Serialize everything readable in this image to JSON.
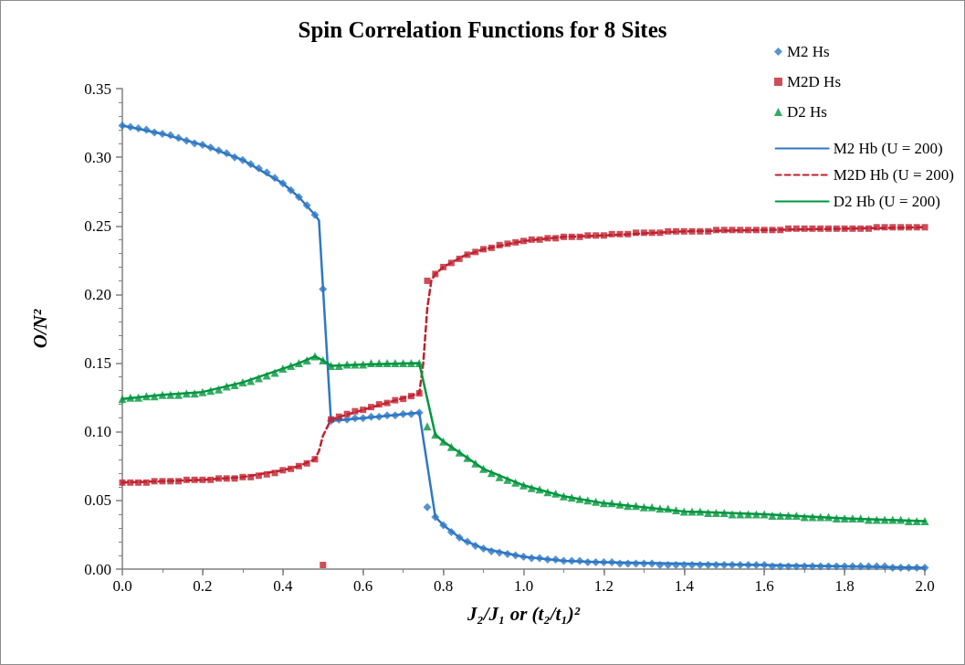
{
  "chart_data": {
    "type": "scatter",
    "title": "Spin Correlation Functions for 8 Sites",
    "xlabel": "J₂/J₁ or (t₂/t₁)²",
    "ylabel": "O/N²",
    "xlim": [
      0,
      2
    ],
    "ylim": [
      0,
      0.35
    ],
    "xticks": [
      {
        "value": 0,
        "label": "0.0"
      },
      {
        "value": 0.2,
        "label": "0.2"
      },
      {
        "value": 0.4,
        "label": "0.4"
      },
      {
        "value": 0.6,
        "label": "0.6"
      },
      {
        "value": 0.8,
        "label": "0.8"
      },
      {
        "value": 1,
        "label": "1.0"
      },
      {
        "value": 1.2,
        "label": "1.2"
      },
      {
        "value": 1.4,
        "label": "1.4"
      },
      {
        "value": 1.6,
        "label": "1.6"
      },
      {
        "value": 1.8,
        "label": "1.8"
      },
      {
        "value": 2,
        "label": "2.0"
      }
    ],
    "yticks": [
      {
        "value": 0,
        "label": "0.00"
      },
      {
        "value": 0.05,
        "label": "0.05"
      },
      {
        "value": 0.1,
        "label": "0.10"
      },
      {
        "value": 0.15,
        "label": "0.15"
      },
      {
        "value": 0.2,
        "label": "0.20"
      },
      {
        "value": 0.25,
        "label": "0.25"
      },
      {
        "value": 0.3,
        "label": "0.30"
      },
      {
        "value": 0.35,
        "label": "0.35"
      }
    ],
    "grid": false,
    "legend": "top right",
    "x": [
      0,
      0.02,
      0.04,
      0.06,
      0.08,
      0.1,
      0.12,
      0.14,
      0.16,
      0.18,
      0.2,
      0.22,
      0.24,
      0.26,
      0.28,
      0.3,
      0.32,
      0.34,
      0.36,
      0.38,
      0.4,
      0.42,
      0.44,
      0.46,
      0.48,
      0.5,
      0.52,
      0.54,
      0.56,
      0.58,
      0.6,
      0.62,
      0.64,
      0.66,
      0.68,
      0.7,
      0.72,
      0.74,
      0.76,
      0.78,
      0.8,
      0.82,
      0.84,
      0.86,
      0.88,
      0.9,
      0.92,
      0.94,
      0.96,
      0.98,
      1,
      1.02,
      1.04,
      1.06,
      1.08,
      1.1,
      1.12,
      1.14,
      1.16,
      1.18,
      1.2,
      1.22,
      1.24,
      1.26,
      1.28,
      1.3,
      1.32,
      1.34,
      1.36,
      1.38,
      1.4,
      1.42,
      1.44,
      1.46,
      1.48,
      1.5,
      1.52,
      1.54,
      1.56,
      1.58,
      1.6,
      1.62,
      1.64,
      1.66,
      1.68,
      1.7,
      1.72,
      1.74,
      1.76,
      1.78,
      1.8,
      1.82,
      1.84,
      1.86,
      1.88,
      1.9,
      1.92,
      1.94,
      1.96,
      1.98,
      2
    ],
    "series": [
      {
        "name": "M2 Hs",
        "marker": "diamond",
        "color": "#2e78c4",
        "values": [
          0.323,
          0.322,
          0.321,
          0.32,
          0.318,
          0.317,
          0.316,
          0.314,
          0.312,
          0.31,
          0.309,
          0.307,
          0.305,
          0.303,
          0.3,
          0.298,
          0.295,
          0.292,
          0.289,
          0.285,
          0.281,
          0.276,
          0.271,
          0.265,
          0.258,
          0.204,
          0.108,
          0.109,
          0.109,
          0.11,
          0.11,
          0.111,
          0.111,
          0.112,
          0.112,
          0.113,
          0.113,
          0.114,
          0.045,
          0.038,
          0.032,
          0.027,
          0.023,
          0.02,
          0.017,
          0.015,
          0.013,
          0.012,
          0.011,
          0.01,
          0.009,
          0.008,
          0.008,
          0.007,
          0.007,
          0.006,
          0.006,
          0.006,
          0.005,
          0.005,
          0.005,
          0.005,
          0.004,
          0.004,
          0.004,
          0.004,
          0.004,
          0.003,
          0.003,
          0.003,
          0.003,
          0.003,
          0.003,
          0.003,
          0.003,
          0.003,
          0.003,
          0.003,
          0.003,
          0.003,
          0.003,
          0.002,
          0.002,
          0.002,
          0.002,
          0.002,
          0.002,
          0.002,
          0.002,
          0.002,
          0.002,
          0.002,
          0.002,
          0.002,
          0.002,
          0.002,
          0.001,
          0.001,
          0.001,
          0.001,
          0.001
        ]
      },
      {
        "name": "M2D Hs",
        "marker": "square",
        "color": "#c0202f",
        "values": [
          0.063,
          0.063,
          0.063,
          0.063,
          0.064,
          0.064,
          0.064,
          0.064,
          0.065,
          0.065,
          0.065,
          0.065,
          0.066,
          0.066,
          0.066,
          0.067,
          0.067,
          0.068,
          0.069,
          0.07,
          0.072,
          0.073,
          0.075,
          0.077,
          0.08,
          0.003,
          0.109,
          0.111,
          0.113,
          0.115,
          0.116,
          0.118,
          0.12,
          0.121,
          0.123,
          0.124,
          0.126,
          0.128,
          0.21,
          0.215,
          0.22,
          0.223,
          0.226,
          0.229,
          0.231,
          0.233,
          0.234,
          0.236,
          0.237,
          0.238,
          0.239,
          0.24,
          0.24,
          0.241,
          0.241,
          0.242,
          0.242,
          0.242,
          0.243,
          0.243,
          0.243,
          0.244,
          0.244,
          0.244,
          0.245,
          0.245,
          0.245,
          0.245,
          0.246,
          0.246,
          0.246,
          0.246,
          0.246,
          0.246,
          0.247,
          0.247,
          0.247,
          0.247,
          0.247,
          0.247,
          0.247,
          0.247,
          0.247,
          0.248,
          0.248,
          0.248,
          0.248,
          0.248,
          0.248,
          0.248,
          0.248,
          0.248,
          0.248,
          0.248,
          0.249,
          0.249,
          0.249,
          0.249,
          0.249,
          0.249,
          0.249
        ]
      },
      {
        "name": "D2 Hs",
        "marker": "triangle",
        "color": "#00963f",
        "values": [
          0.124,
          0.125,
          0.125,
          0.126,
          0.126,
          0.127,
          0.127,
          0.127,
          0.128,
          0.128,
          0.129,
          0.13,
          0.131,
          0.133,
          0.134,
          0.136,
          0.137,
          0.139,
          0.141,
          0.143,
          0.146,
          0.148,
          0.15,
          0.152,
          0.155,
          0.152,
          0.148,
          0.148,
          0.149,
          0.149,
          0.149,
          0.15,
          0.15,
          0.15,
          0.15,
          0.15,
          0.15,
          0.15,
          0.104,
          0.098,
          0.093,
          0.089,
          0.085,
          0.081,
          0.077,
          0.073,
          0.07,
          0.067,
          0.065,
          0.063,
          0.061,
          0.059,
          0.058,
          0.056,
          0.055,
          0.053,
          0.052,
          0.051,
          0.05,
          0.049,
          0.048,
          0.048,
          0.047,
          0.046,
          0.046,
          0.045,
          0.045,
          0.044,
          0.044,
          0.043,
          0.042,
          0.042,
          0.042,
          0.041,
          0.041,
          0.041,
          0.04,
          0.04,
          0.04,
          0.04,
          0.04,
          0.039,
          0.039,
          0.039,
          0.039,
          0.038,
          0.038,
          0.038,
          0.038,
          0.037,
          0.037,
          0.037,
          0.037,
          0.036,
          0.036,
          0.036,
          0.036,
          0.036,
          0.035,
          0.035,
          0.035
        ]
      },
      {
        "name": "M2 Hb (U = 200)",
        "type": "line",
        "marker": "none",
        "line_style": "solid",
        "color": "#2e78c4",
        "x": [
          0,
          0.1,
          0.2,
          0.3,
          0.4,
          0.44,
          0.48,
          0.49,
          0.52,
          0.6,
          0.74,
          0.78,
          0.8,
          0.85,
          0.9,
          1,
          1.1,
          1.2,
          1.4,
          1.6,
          1.8,
          2
        ],
        "values": [
          0.323,
          0.317,
          0.309,
          0.298,
          0.281,
          0.271,
          0.258,
          0.254,
          0.108,
          0.11,
          0.114,
          0.038,
          0.032,
          0.021,
          0.015,
          0.009,
          0.006,
          0.005,
          0.004,
          0.003,
          0.002,
          0.001
        ]
      },
      {
        "name": "M2D Hb (U = 200)",
        "type": "line",
        "marker": "none",
        "line_style": "dashed",
        "color": "#c0202f",
        "x": [
          0,
          0.1,
          0.2,
          0.3,
          0.4,
          0.44,
          0.48,
          0.49,
          0.5,
          0.52,
          0.6,
          0.74,
          0.75,
          0.76,
          0.77,
          0.78,
          0.8,
          0.85,
          0.9,
          1,
          1.1,
          1.2,
          1.4,
          1.6,
          1.8,
          2
        ],
        "values": [
          0.063,
          0.064,
          0.065,
          0.067,
          0.072,
          0.075,
          0.08,
          0.086,
          0.097,
          0.109,
          0.116,
          0.128,
          0.15,
          0.19,
          0.21,
          0.215,
          0.22,
          0.228,
          0.233,
          0.239,
          0.242,
          0.243,
          0.246,
          0.247,
          0.248,
          0.249
        ]
      },
      {
        "name": "D2 Hb (U = 200)",
        "type": "line",
        "marker": "none",
        "line_style": "solid",
        "color": "#00963f",
        "x": [
          0,
          0.1,
          0.2,
          0.3,
          0.4,
          0.44,
          0.48,
          0.5,
          0.52,
          0.6,
          0.74,
          0.78,
          0.8,
          0.85,
          0.9,
          1,
          1.1,
          1.2,
          1.4,
          1.6,
          1.8,
          2
        ],
        "values": [
          0.124,
          0.127,
          0.129,
          0.136,
          0.146,
          0.15,
          0.155,
          0.152,
          0.148,
          0.149,
          0.15,
          0.098,
          0.093,
          0.083,
          0.073,
          0.061,
          0.053,
          0.048,
          0.042,
          0.04,
          0.037,
          0.035
        ]
      }
    ]
  }
}
